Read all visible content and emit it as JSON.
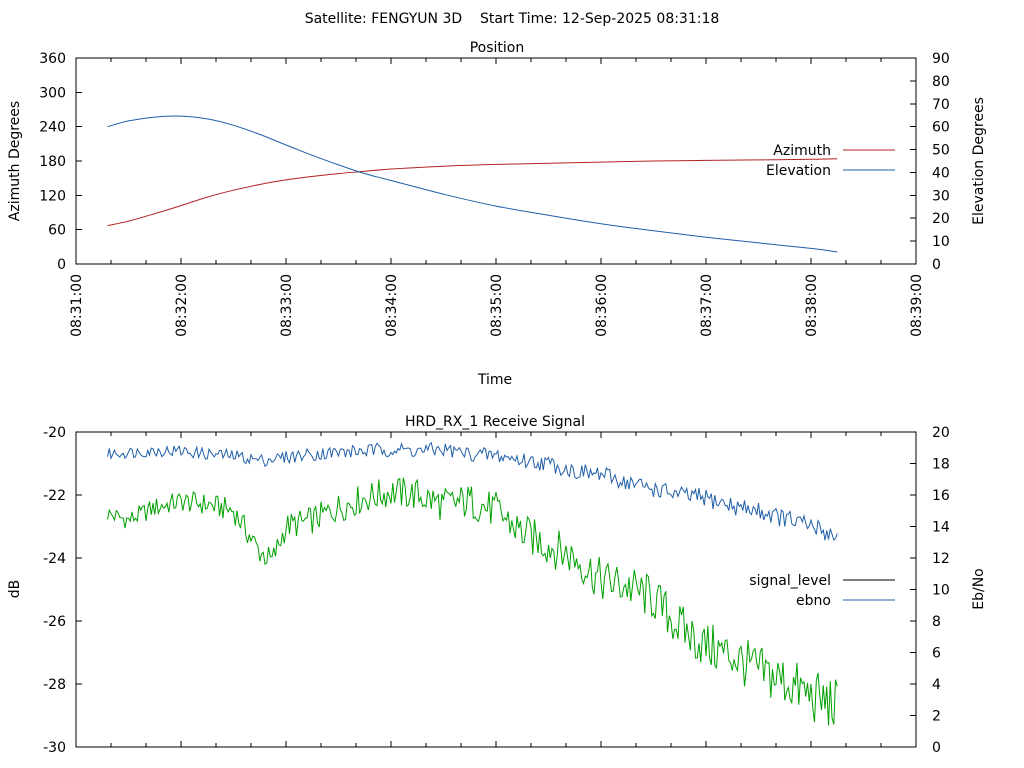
{
  "page": {
    "header": "Satellite: FENGYUN 3D    Start Time: 12-Sep-2025 08:31:18"
  },
  "charts": {
    "position": {
      "title": "Position",
      "xlabel": "Time",
      "ylabel_left": "Azimuth Degrees",
      "ylabel_right": "Elevation Degrees"
    },
    "signal": {
      "title": "HRD_RX_1 Receive Signal",
      "xlabel": "",
      "ylabel_left": "dB",
      "ylabel_right": "Eb/No"
    }
  },
  "chart_data": [
    {
      "type": "line",
      "title": "Position",
      "xlabel": "Time",
      "ylabel": "Azimuth Degrees",
      "y2label": "Elevation Degrees",
      "xlim": [
        "08:31:00",
        "08:39:00"
      ],
      "xticks": [
        "08:31:00",
        "08:32:00",
        "08:33:00",
        "08:34:00",
        "08:35:00",
        "08:36:00",
        "08:37:00",
        "08:38:00",
        "08:39:00"
      ],
      "ylim": [
        0,
        360
      ],
      "yticks": [
        0,
        60,
        120,
        180,
        240,
        300,
        360
      ],
      "y2lim": [
        0,
        90
      ],
      "y2ticks": [
        0,
        10,
        20,
        30,
        40,
        50,
        60,
        70,
        80,
        90
      ],
      "legend": "right",
      "series": [
        {
          "name": "Azimuth",
          "axis": "left",
          "color": "#b22222",
          "x": [
            "08:31:18",
            "08:31:30",
            "08:31:45",
            "08:32:00",
            "08:32:15",
            "08:32:30",
            "08:32:45",
            "08:33:00",
            "08:33:15",
            "08:33:30",
            "08:33:45",
            "08:34:00",
            "08:34:30",
            "08:35:00",
            "08:35:30",
            "08:36:00",
            "08:36:30",
            "08:37:00",
            "08:37:30",
            "08:38:00",
            "08:38:15"
          ],
          "y": [
            67,
            75,
            88,
            102,
            117,
            129,
            139,
            147,
            153,
            158,
            162,
            166,
            171,
            174,
            176,
            178,
            180,
            181,
            182,
            183,
            184
          ]
        },
        {
          "name": "Elevation",
          "axis": "right",
          "color": "#1f5fa8",
          "x": [
            "08:31:18",
            "08:31:30",
            "08:31:45",
            "08:32:00",
            "08:32:15",
            "08:32:30",
            "08:32:45",
            "08:33:00",
            "08:33:15",
            "08:33:30",
            "08:33:45",
            "08:34:00",
            "08:34:30",
            "08:35:00",
            "08:35:30",
            "08:36:00",
            "08:36:30",
            "08:37:00",
            "08:37:30",
            "08:38:00",
            "08:38:15"
          ],
          "y": [
            60,
            62.5,
            64.2,
            64.6,
            63.4,
            60.6,
            56.6,
            52,
            47.5,
            43.3,
            39.5,
            36.5,
            30.5,
            25.3,
            21.3,
            17.6,
            14.5,
            11.7,
            9.2,
            6.8,
            5.3
          ]
        }
      ]
    },
    {
      "type": "line",
      "title": "HRD_RX_1 Receive Signal",
      "xlabel": "",
      "ylabel": "dB",
      "y2label": "Eb/No",
      "xlim": [
        "08:31:00",
        "08:39:00"
      ],
      "ylim": [
        -30,
        -20
      ],
      "yticks": [
        -30,
        -28,
        -26,
        -24,
        -22,
        -20
      ],
      "y2lim": [
        0,
        20
      ],
      "y2ticks": [
        0,
        2,
        4,
        6,
        8,
        10,
        12,
        14,
        16,
        18,
        20
      ],
      "legend": "right",
      "series": [
        {
          "name": "signal_level",
          "axis": "left",
          "color": "#00a000",
          "legend_color": "#000000",
          "x": [
            "08:31:18",
            "08:31:30",
            "08:31:45",
            "08:32:00",
            "08:32:15",
            "08:32:30",
            "08:32:45",
            "08:32:52",
            "08:33:00",
            "08:33:15",
            "08:33:30",
            "08:33:45",
            "08:34:00",
            "08:34:15",
            "08:34:30",
            "08:34:45",
            "08:35:00",
            "08:35:15",
            "08:35:30",
            "08:35:45",
            "08:36:00",
            "08:36:15",
            "08:36:30",
            "08:36:45",
            "08:37:00",
            "08:37:15",
            "08:37:30",
            "08:37:45",
            "08:38:00",
            "08:38:15"
          ],
          "y": [
            -22.6,
            -22.8,
            -22.4,
            -22.2,
            -22.3,
            -22.5,
            -23.8,
            -24.1,
            -23.0,
            -22.8,
            -22.4,
            -22.1,
            -21.9,
            -22.0,
            -22.3,
            -22.2,
            -22.5,
            -23.2,
            -23.6,
            -24.0,
            -24.7,
            -24.9,
            -25.3,
            -26.2,
            -26.8,
            -27.1,
            -27.6,
            -27.9,
            -28.4,
            -28.7
          ]
        },
        {
          "name": "ebno",
          "axis": "right",
          "color": "#1f5fa8",
          "x": [
            "08:31:18",
            "08:31:30",
            "08:31:45",
            "08:32:00",
            "08:32:15",
            "08:32:30",
            "08:32:45",
            "08:33:00",
            "08:33:15",
            "08:33:30",
            "08:33:45",
            "08:34:00",
            "08:34:15",
            "08:34:30",
            "08:34:45",
            "08:35:00",
            "08:35:15",
            "08:35:30",
            "08:35:45",
            "08:36:00",
            "08:36:15",
            "08:36:30",
            "08:36:45",
            "08:37:00",
            "08:37:15",
            "08:37:30",
            "08:37:45",
            "08:38:00",
            "08:38:15"
          ],
          "y": [
            18.6,
            18.7,
            18.8,
            18.8,
            18.6,
            18.5,
            18.2,
            18.4,
            18.6,
            18.7,
            18.8,
            18.9,
            18.8,
            18.9,
            18.6,
            18.5,
            18.2,
            18.0,
            17.5,
            17.3,
            16.8,
            16.4,
            16.0,
            15.8,
            15.3,
            15.0,
            14.5,
            14.0,
            13.4
          ]
        }
      ]
    }
  ]
}
